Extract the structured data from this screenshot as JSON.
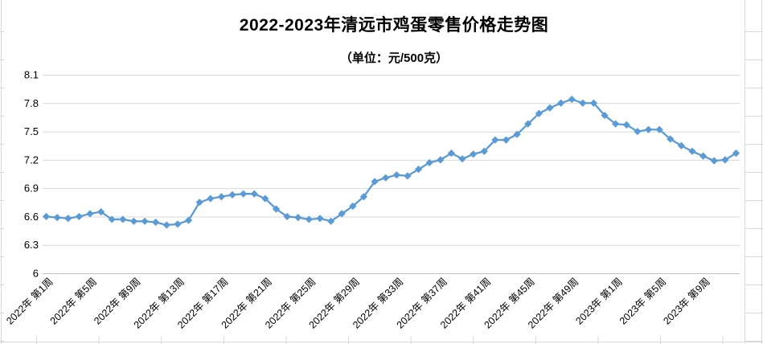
{
  "title": "2022-2023年清远市鸡蛋零售价格走势图",
  "subtitle": "（单位：元/500克）",
  "chart_data": {
    "type": "line",
    "title": "2022-2023年清远市鸡蛋零售价格走势图",
    "unit_label": "（单位：元/500克）",
    "xlabel": "",
    "ylabel": "",
    "ylim": [
      6,
      8.1
    ],
    "y_ticks": [
      6,
      6.3,
      6.6,
      6.9,
      7.2,
      7.5,
      7.8,
      8.1
    ],
    "grid": "horizontal",
    "legend": "none",
    "marker": "diamond",
    "x_tick_labels": [
      "2022年 第1周",
      "2022年 第5周",
      "2022年 第9周",
      "2022年 第13周",
      "2022年 第17周",
      "2022年 第21周",
      "2022年 第25周",
      "2022年 第29周",
      "2022年 第33周",
      "2022年 第37周",
      "2022年 第41周",
      "2022年 第45周",
      "2022年 第49周",
      "2023年 第1周",
      "2023年 第5周",
      "2023年 第9周"
    ],
    "x_label_step": 4,
    "values": [
      6.6,
      6.59,
      6.58,
      6.6,
      6.63,
      6.65,
      6.57,
      6.57,
      6.55,
      6.55,
      6.54,
      6.51,
      6.52,
      6.56,
      6.75,
      6.79,
      6.81,
      6.83,
      6.84,
      6.84,
      6.79,
      6.68,
      6.6,
      6.59,
      6.57,
      6.58,
      6.55,
      6.63,
      6.71,
      6.81,
      6.97,
      7.01,
      7.04,
      7.03,
      7.1,
      7.17,
      7.2,
      7.27,
      7.21,
      7.26,
      7.29,
      7.41,
      7.41,
      7.47,
      7.58,
      7.69,
      7.75,
      7.8,
      7.84,
      7.8,
      7.8,
      7.67,
      7.58,
      7.57,
      7.5,
      7.52,
      7.52,
      7.42,
      7.35,
      7.29,
      7.24,
      7.19,
      7.2,
      7.27
    ],
    "colors": {
      "series": "#5B9BD5",
      "gridline": "#D9D9D9",
      "axis_line": "#BFBFBF",
      "text": "#000000",
      "worksheet_line": "#D9D9D9"
    }
  }
}
